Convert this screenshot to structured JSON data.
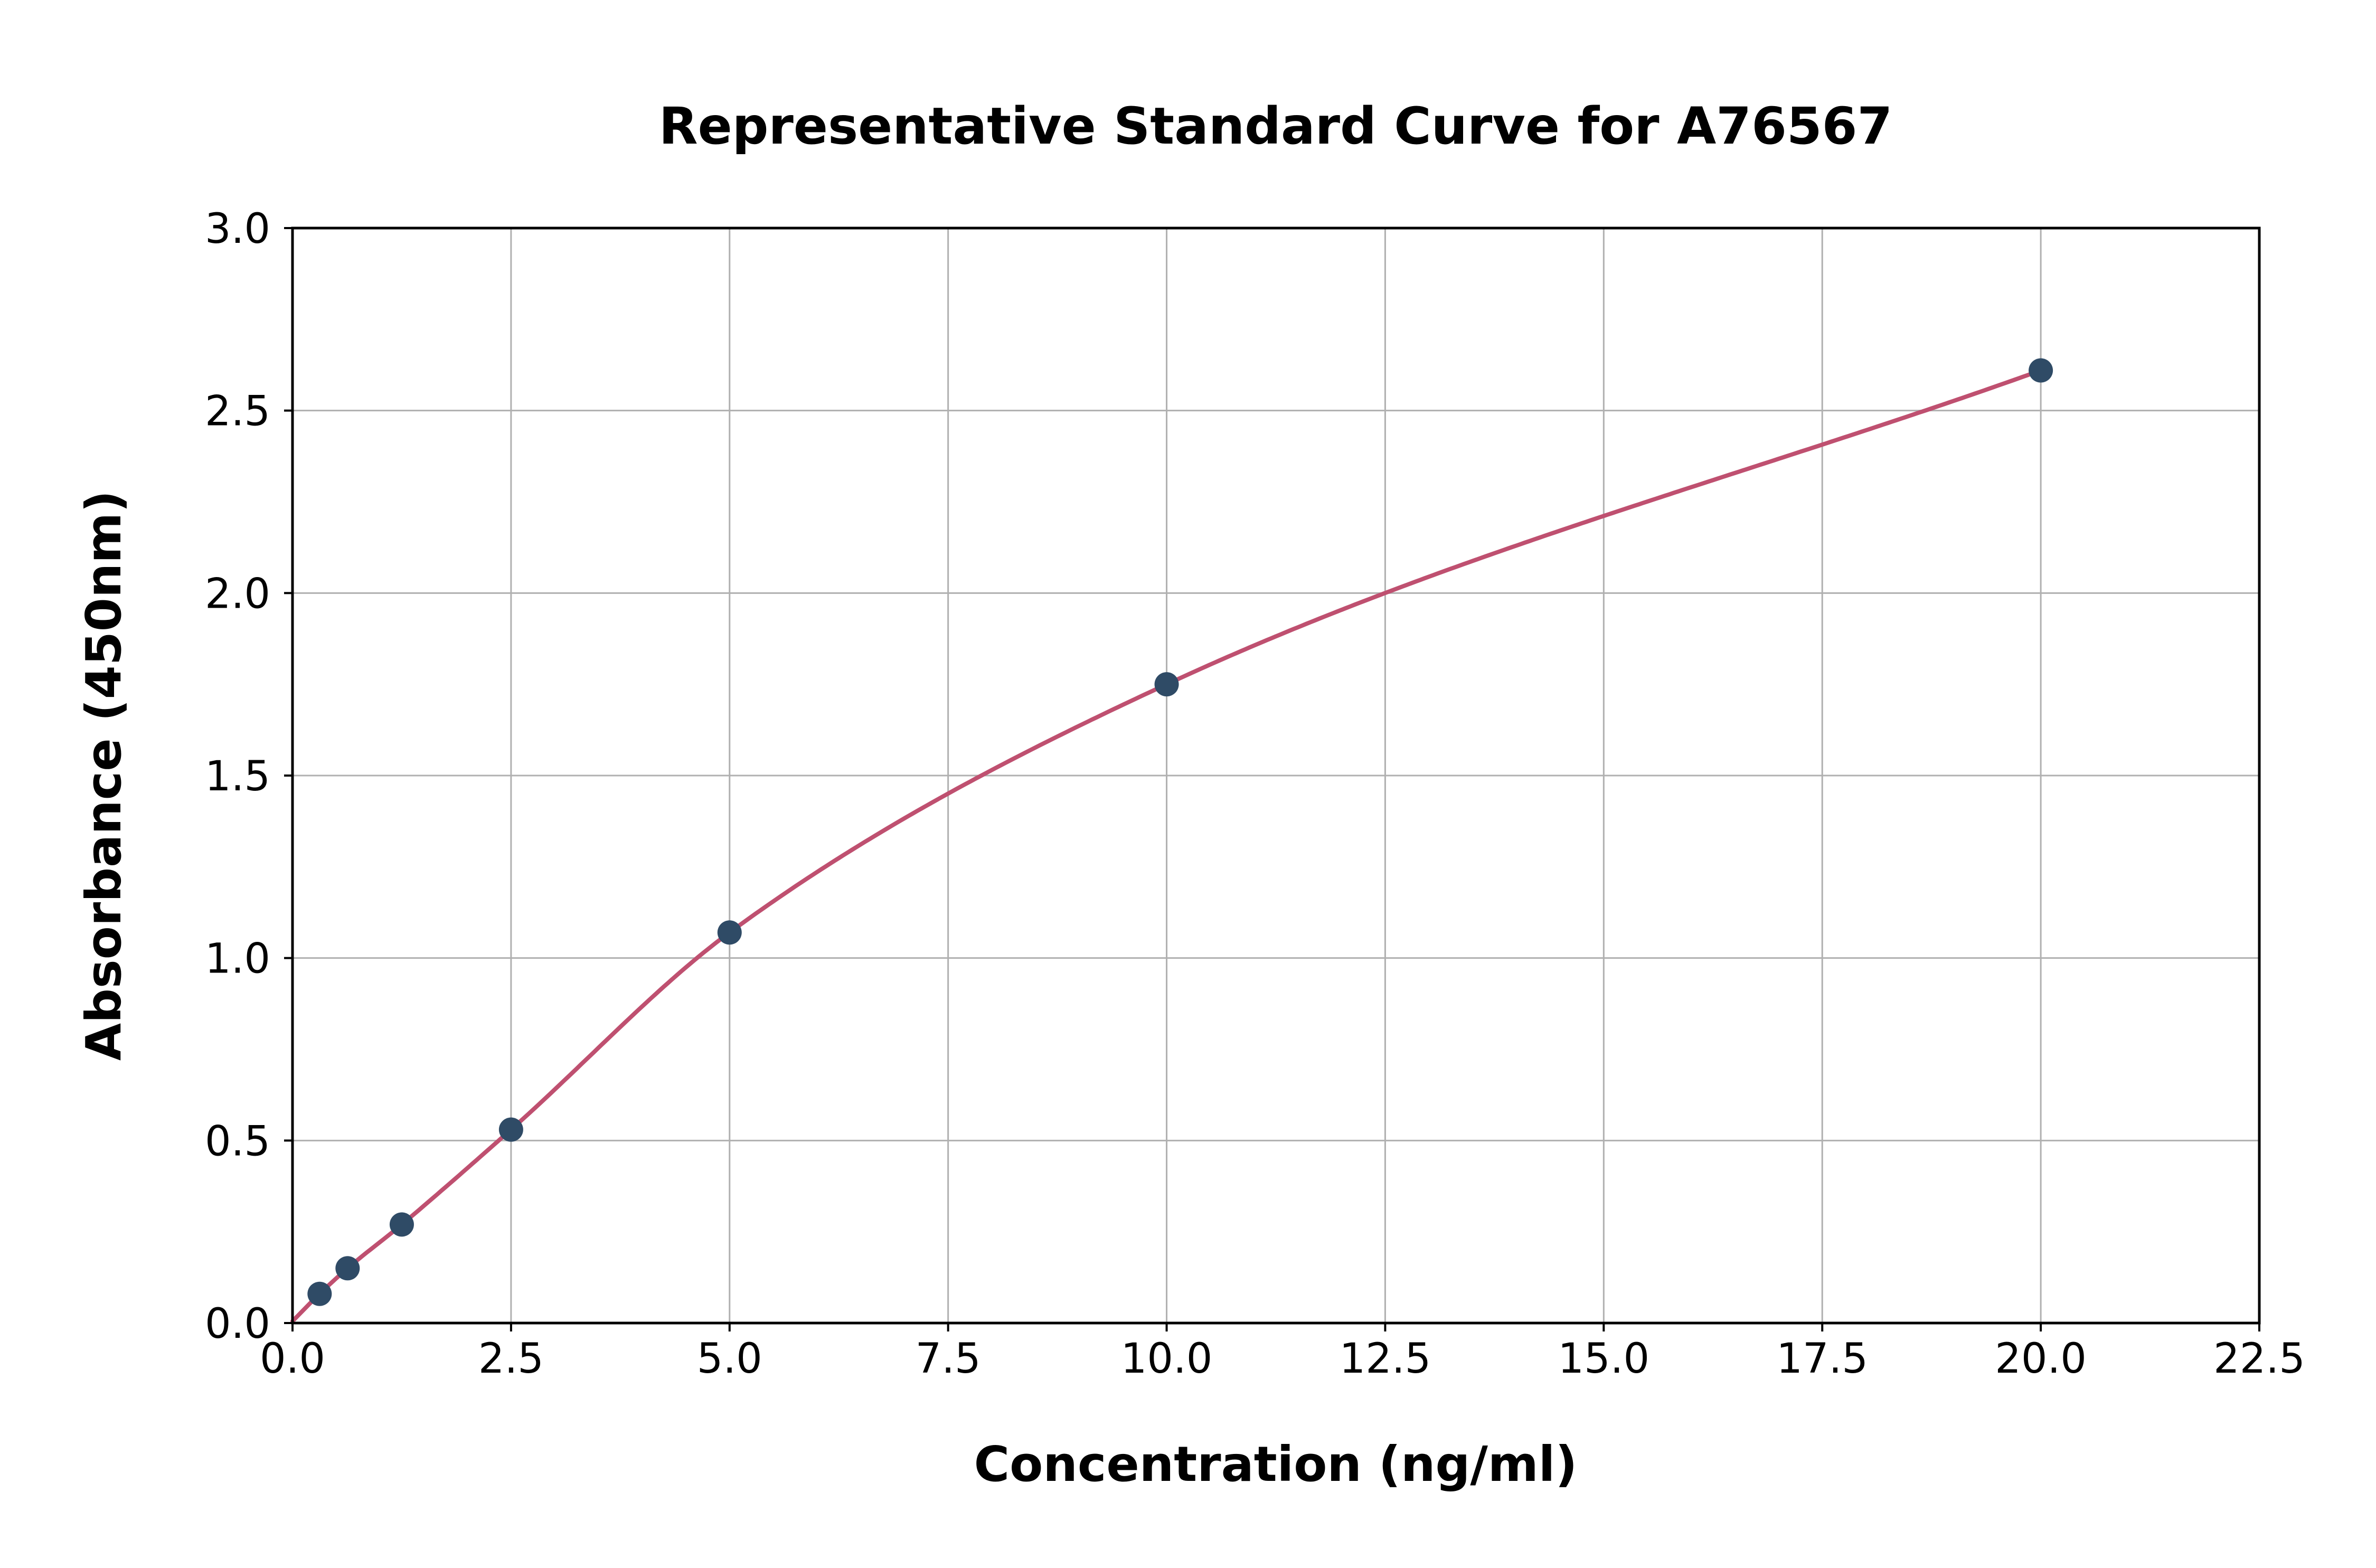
{
  "chart_data": {
    "type": "scatter",
    "title": "Representative Standard Curve for A76567",
    "xlabel": "Concentration (ng/ml)",
    "ylabel": "Absorbance (450nm)",
    "xlim": [
      0.0,
      22.5
    ],
    "ylim": [
      0.0,
      3.0
    ],
    "grid": true,
    "legend": "none",
    "x_ticks": [
      0.0,
      2.5,
      5.0,
      7.5,
      10.0,
      12.5,
      15.0,
      17.5,
      20.0,
      22.5
    ],
    "x_tick_labels": [
      "0.0",
      "2.5",
      "5.0",
      "7.5",
      "10.0",
      "12.5",
      "15.0",
      "17.5",
      "20.0",
      "22.5"
    ],
    "y_ticks": [
      0.0,
      0.5,
      1.0,
      1.5,
      2.0,
      2.5,
      3.0
    ],
    "y_tick_labels": [
      "0.0",
      "0.5",
      "1.0",
      "1.5",
      "2.0",
      "2.5",
      "3.0"
    ],
    "points_x": [
      0.31,
      0.63,
      1.25,
      2.5,
      5.0,
      10.0,
      20.0
    ],
    "points_y": [
      0.08,
      0.15,
      0.27,
      0.53,
      1.07,
      1.75,
      2.61
    ],
    "fit_curve": {
      "style": "smooth-through-points",
      "start": [
        0.0,
        0.005
      ],
      "end_x": 20.0
    },
    "colors": {
      "curve": "#bf5070",
      "point": "#2f4b66",
      "grid": "#b0b0b0",
      "axis": "#000000",
      "background": "#ffffff"
    }
  }
}
